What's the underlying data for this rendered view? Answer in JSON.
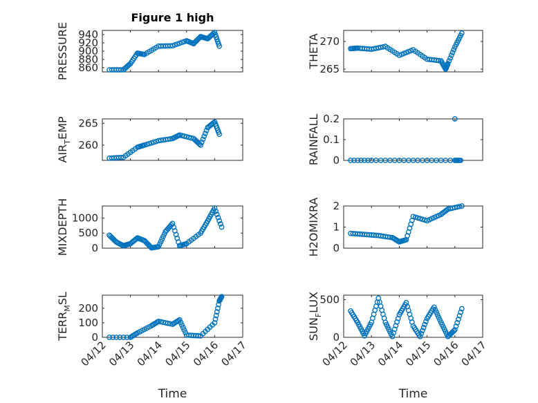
{
  "figure_title": "Figure 1 high",
  "chart_data": [
    {
      "type": "scatter",
      "ylabel": "PRESSURE",
      "ylim": [
        850,
        950
      ],
      "yticks": [
        "860",
        "880",
        "900",
        "920",
        "940"
      ],
      "ytick_values": [
        860,
        880,
        900,
        920,
        940
      ],
      "color": "#0072BD",
      "x": [
        "04/12 06:00",
        "04/12 18:00",
        "04/13 00:00",
        "04/13 06:00",
        "04/13 12:00",
        "04/14 00:00",
        "04/14 12:00",
        "04/15 00:00",
        "04/15 06:00",
        "04/15 12:00",
        "04/15 18:00",
        "04/16 00:00",
        "04/16 04:00"
      ],
      "y": [
        855,
        855,
        870,
        895,
        892,
        912,
        913,
        925,
        918,
        935,
        930,
        945,
        912
      ]
    },
    {
      "type": "scatter",
      "ylabel": "THETA",
      "ylim": [
        264.5,
        272
      ],
      "yticks": [
        "265",
        "270"
      ],
      "ytick_values": [
        265,
        270
      ],
      "color": "#0072BD",
      "x": [
        "04/12 06:00",
        "04/12 12:00",
        "04/13 00:00",
        "04/13 12:00",
        "04/14 00:00",
        "04/14 12:00",
        "04/15 00:00",
        "04/15 12:00",
        "04/15 16:00",
        "04/15 18:00",
        "04/16 00:00",
        "04/16 06:00"
      ],
      "y": [
        268.7,
        268.8,
        268.6,
        269.1,
        267.5,
        268.5,
        266.8,
        266.5,
        265.0,
        266.0,
        269.0,
        271.5
      ]
    },
    {
      "type": "scatter",
      "ylabel": "AIR_TEMP",
      "ylim": [
        256.5,
        266
      ],
      "yticks": [
        "260",
        "265"
      ],
      "ytick_values": [
        260,
        265
      ],
      "color": "#0072BD",
      "x": [
        "04/12 06:00",
        "04/12 18:00",
        "04/13 06:00",
        "04/13 12:00",
        "04/14 00:00",
        "04/14 12:00",
        "04/14 18:00",
        "04/15 06:00",
        "04/15 12:00",
        "04/15 18:00",
        "04/16 00:00",
        "04/16 04:00"
      ],
      "y": [
        257,
        257.2,
        259.5,
        260,
        261,
        261.5,
        262.3,
        261.5,
        260,
        264,
        265.3,
        262.5
      ]
    },
    {
      "type": "scatter",
      "ylabel": "RAINFALL",
      "ylim": [
        0,
        0.2
      ],
      "yticks": [
        "0",
        "0.1",
        "0.2"
      ],
      "ytick_values": [
        0,
        0.1,
        0.2
      ],
      "color": "#0072BD",
      "x": [
        "04/12 06:00",
        "04/13 00:00",
        "04/14 00:00",
        "04/15 00:00",
        "04/16 00:00",
        "04/16 06:00",
        "04/16 00:00"
      ],
      "y": [
        0,
        0,
        0,
        0,
        0,
        0,
        0.2
      ]
    },
    {
      "type": "scatter",
      "ylabel": "MIXDEPTH",
      "ylim": [
        0,
        1400
      ],
      "yticks": [
        "0",
        "500",
        "1000"
      ],
      "ytick_values": [
        0,
        500,
        1000
      ],
      "color": "#0072BD",
      "x": [
        "04/12 06:00",
        "04/12 12:00",
        "04/12 18:00",
        "04/13 00:00",
        "04/13 06:00",
        "04/13 12:00",
        "04/13 18:00",
        "04/14 00:00",
        "04/14 06:00",
        "04/14 12:00",
        "04/14 18:00",
        "04/15 00:00",
        "04/15 12:00",
        "04/15 18:00",
        "04/16 00:00",
        "04/16 06:00"
      ],
      "y": [
        430,
        200,
        80,
        150,
        340,
        250,
        10,
        50,
        550,
        820,
        80,
        150,
        500,
        900,
        1330,
        700
      ]
    },
    {
      "type": "scatter",
      "ylabel": "H2OMIXRA",
      "ylim": [
        0,
        2
      ],
      "yticks": [
        "0",
        "1",
        "2"
      ],
      "ytick_values": [
        0,
        1,
        2
      ],
      "color": "#0072BD",
      "x": [
        "04/12 06:00",
        "04/12 18:00",
        "04/13 06:00",
        "04/13 18:00",
        "04/14 00:00",
        "04/14 06:00",
        "04/14 12:00",
        "04/15 00:00",
        "04/15 12:00",
        "04/15 18:00",
        "04/16 06:00"
      ],
      "y": [
        0.7,
        0.65,
        0.6,
        0.5,
        0.3,
        0.4,
        1.5,
        1.3,
        1.6,
        1.85,
        2.0
      ]
    },
    {
      "type": "scatter",
      "ylabel": "TERR_MSL",
      "ylim": [
        0,
        290
      ],
      "yticks": [
        "0",
        "100",
        "200"
      ],
      "ytick_values": [
        0,
        100,
        200
      ],
      "color": "#0072BD",
      "x": [
        "04/12 06:00",
        "04/13 00:00",
        "04/13 06:00",
        "04/13 18:00",
        "04/14 00:00",
        "04/14 12:00",
        "04/14 18:00",
        "04/15 00:00",
        "04/15 12:00",
        "04/16 00:00",
        "04/16 04:00",
        "04/16 06:00"
      ],
      "y": [
        0,
        0,
        30,
        80,
        110,
        90,
        120,
        15,
        10,
        100,
        250,
        280
      ]
    },
    {
      "type": "scatter",
      "ylabel": "SUN_FLUX",
      "ylim": [
        0,
        560
      ],
      "yticks": [
        "0",
        "500"
      ],
      "ytick_values": [
        0,
        500
      ],
      "color": "#0072BD",
      "x": [
        "04/12 06:00",
        "04/12 12:00",
        "04/12 18:00",
        "04/13 00:00",
        "04/13 06:00",
        "04/13 12:00",
        "04/13 18:00",
        "04/14 00:00",
        "04/14 06:00",
        "04/14 12:00",
        "04/14 18:00",
        "04/15 00:00",
        "04/15 06:00",
        "04/15 12:00",
        "04/15 18:00",
        "04/16 00:00",
        "04/16 06:00"
      ],
      "y": [
        350,
        200,
        20,
        200,
        520,
        200,
        10,
        300,
        460,
        150,
        10,
        250,
        400,
        200,
        10,
        100,
        380
      ]
    }
  ],
  "xaxis": {
    "xlabel": "Time",
    "ticks": [
      "04/12",
      "04/13",
      "04/14",
      "04/15",
      "04/16",
      "04/17"
    ]
  }
}
